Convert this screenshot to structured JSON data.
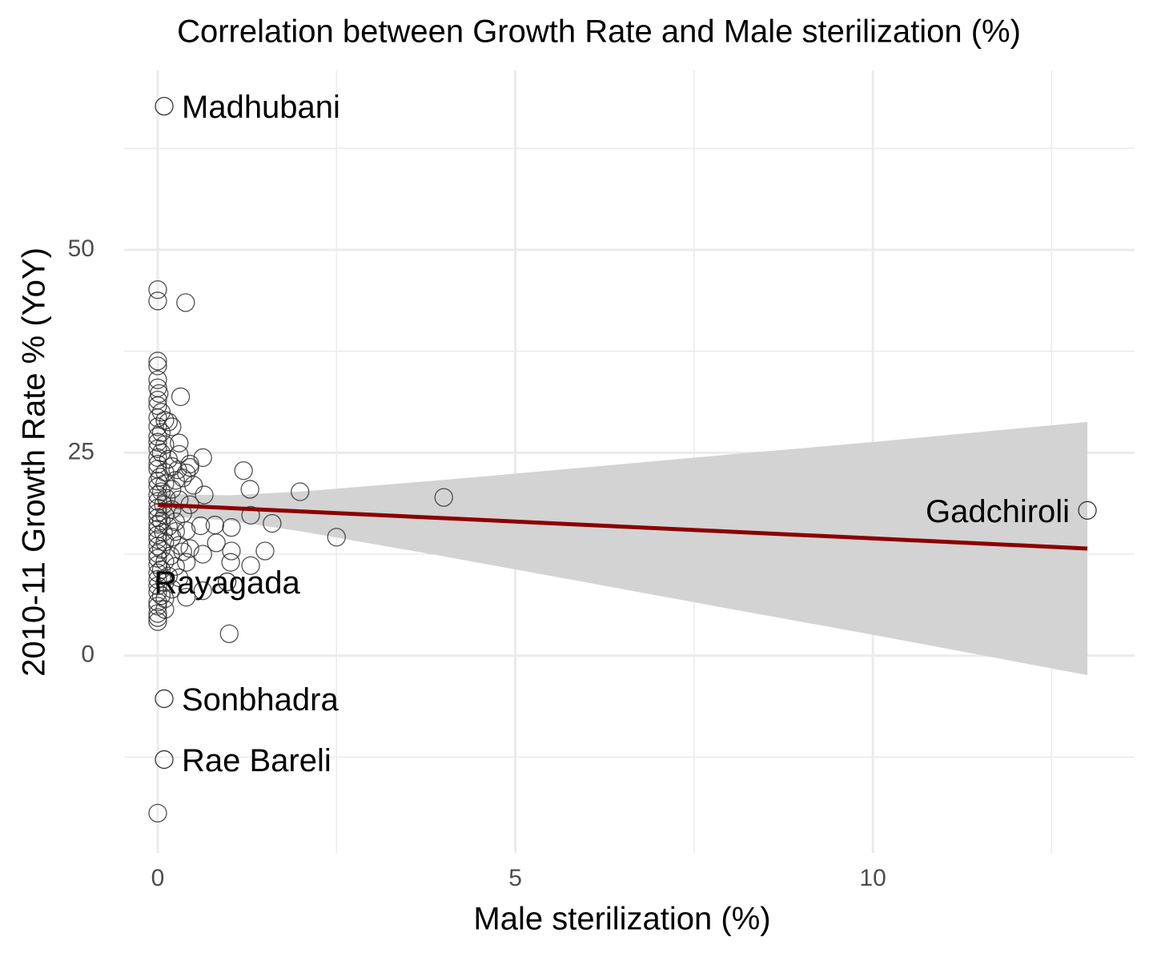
{
  "chart_data": {
    "type": "scatter",
    "title": "Correlation between Growth Rate and Male sterilization (%)",
    "x_label": "Male sterilization (%)",
    "y_label": "2010-11 Growth Rate % (YoY)",
    "xlim": [
      -0.47,
      13.66
    ],
    "ylim": [
      -24.3,
      72.1
    ],
    "xticks": [
      0,
      5,
      10
    ],
    "yticks": [
      0,
      25,
      50
    ],
    "x_minor_grid": [
      2.5,
      7.5,
      12.5
    ],
    "y_minor_grid": [
      -12.5,
      12.5,
      37.5,
      62.5
    ],
    "grid": true,
    "point_color": "#333333",
    "x": [
      0,
      0,
      0.39,
      0.32,
      0.63,
      1.2,
      1.29,
      1.99,
      4.0,
      2.5,
      1.6,
      1.03,
      0.8,
      1.5,
      1.3,
      1.02,
      1.03,
      0.82,
      1.0,
      1.3,
      0.63,
      0.6,
      0.65,
      0.4,
      0.45,
      0.3,
      0.63,
      0.4,
      0,
      0,
      0,
      0,
      0,
      0.02,
      0,
      0,
      0.05,
      0,
      0.1,
      0.15,
      0,
      0.05,
      0.2,
      0,
      0,
      0.1,
      0,
      0.05,
      0,
      0.15,
      0,
      0.2,
      0,
      0.1,
      0.03,
      0,
      0.25,
      0.1,
      0,
      0.2,
      0.05,
      0,
      0.12,
      0,
      0.3,
      0.08,
      0,
      0.2,
      0,
      0.1,
      0.35,
      0,
      0.05,
      0.25,
      0,
      0.15,
      0,
      0.4,
      0.08,
      0,
      0.2,
      0,
      0.1,
      0.3,
      0,
      0.05,
      0.35,
      0,
      0.18,
      0,
      0.1,
      0,
      0.25,
      0.05,
      0,
      0.15,
      0,
      0.1,
      0,
      0.2,
      0,
      0.05,
      0.1,
      0,
      0,
      0.1,
      0,
      0,
      0,
      0.45,
      0.5,
      0.45,
      0.3,
      0.35,
      0.28,
      0.45,
      0.4,
      0.3,
      0.25
    ],
    "values": [
      45.1,
      43.7,
      43.5,
      31.9,
      24.4,
      22.8,
      20.5,
      20.2,
      19.5,
      14.6,
      16.3,
      15.8,
      16.1,
      12.9,
      11.1,
      11.5,
      12.9,
      13.9,
      2.7,
      17.3,
      12.5,
      16.0,
      19.8,
      22.5,
      23.2,
      26.2,
      8.0,
      7.2,
      -19.4,
      36.3,
      35.7,
      34,
      33,
      32.3,
      31.5,
      30.8,
      30,
      29.3,
      29,
      28.8,
      28.2,
      27.5,
      28.2,
      27,
      26.3,
      26,
      25.5,
      25,
      24.4,
      24.2,
      23.6,
      23.3,
      23,
      22.6,
      22,
      21.5,
      21.6,
      21.2,
      20.8,
      20.5,
      20.2,
      19.8,
      19.4,
      19,
      19.2,
      18.6,
      18.2,
      18,
      17.6,
      17.3,
      17.5,
      17,
      16.6,
      16.5,
      16.2,
      15.9,
      15.6,
      15.4,
      15.2,
      14.9,
      14.6,
      14.3,
      14,
      13.6,
      13.5,
      13.1,
      12.8,
      12.6,
      12.3,
      12,
      11.6,
      11.2,
      11,
      10.6,
      10.2,
      9.8,
      9.4,
      9,
      8.6,
      8.2,
      7.8,
      7.4,
      7,
      6.6,
      6.1,
      5.7,
      5.2,
      4.7,
      4.2,
      23.6,
      21,
      18.6,
      24.8,
      21.9,
      22.9,
      13.2,
      11.5,
      9.6,
      15.3
    ],
    "labeled_points": {
      "labels": [
        "Madhubani",
        "Sonbhadra",
        "Rae Bareli",
        "Gadchiroli",
        "Rayagada"
      ],
      "x": [
        0.09,
        0.09,
        0.09,
        13.0,
        0.97
      ],
      "values": [
        67.7,
        -5.3,
        -12.8,
        17.9,
        9.1
      ],
      "anchors": [
        "start",
        "start",
        "start",
        "end",
        "middle"
      ]
    },
    "fit": {
      "color": "#8b0000",
      "band_color": "#d3d3d3",
      "x": [
        0,
        1,
        2,
        4,
        6,
        8,
        10,
        13
      ],
      "values": [
        18.6,
        18.19,
        17.77,
        16.94,
        16.11,
        15.28,
        14.45,
        13.2
      ],
      "lower": [
        17.25,
        16.63,
        15.32,
        12.23,
        9.01,
        5.77,
        2.58,
        -2.4
      ],
      "upper": [
        19.95,
        19.75,
        20.22,
        21.65,
        23.21,
        24.79,
        26.32,
        28.8
      ]
    }
  }
}
